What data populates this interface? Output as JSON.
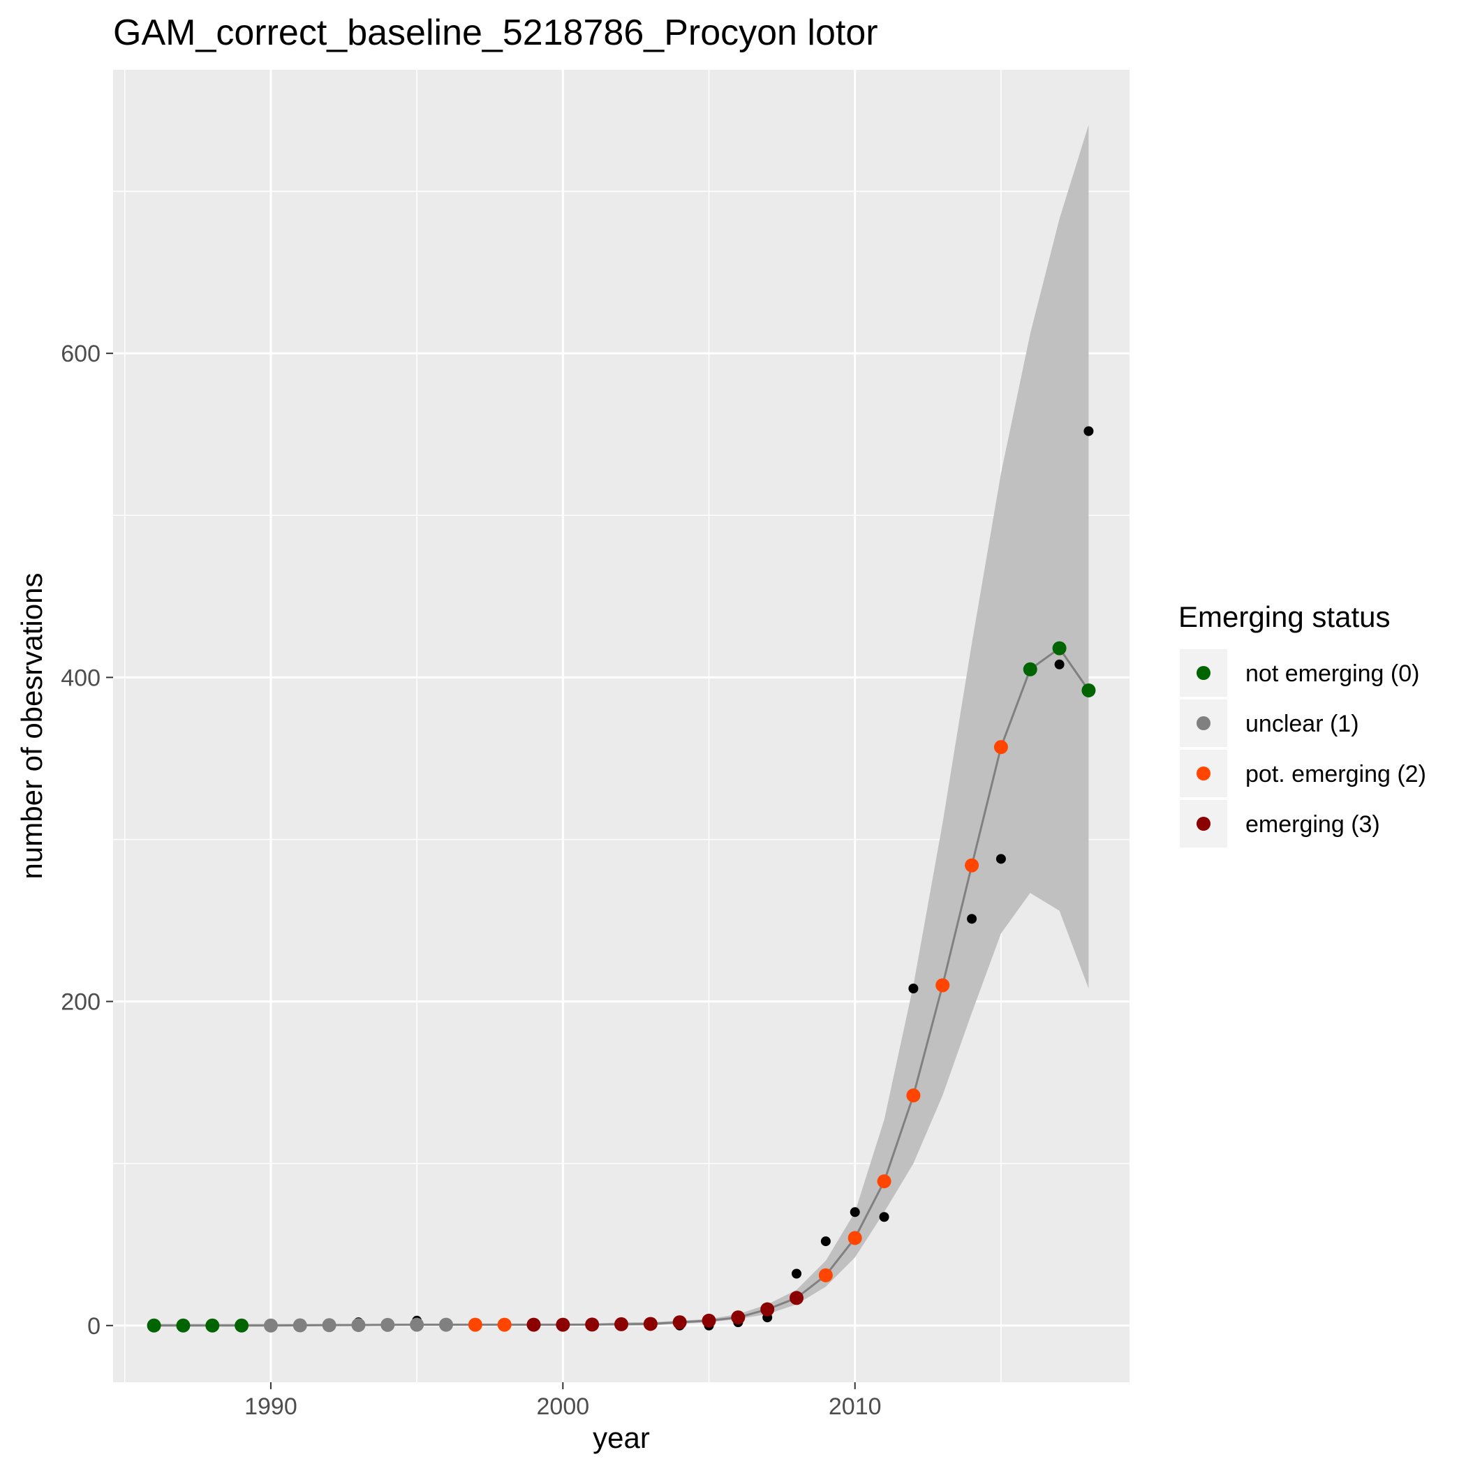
{
  "chart_data": {
    "type": "scatter",
    "title": "GAM_correct_baseline_5218786_Procyon lotor",
    "xlabel": "year",
    "ylabel": "number of obesrvations",
    "xlim": [
      1984.6,
      2019.4
    ],
    "ylim": [
      -35,
      775
    ],
    "x_ticks": [
      1990,
      2000,
      2010
    ],
    "y_ticks": [
      0,
      200,
      400,
      600
    ],
    "grid": true,
    "legend": {
      "title": "Emerging status",
      "placement": "right",
      "items": [
        {
          "label": "not emerging (0)",
          "color": "#006400"
        },
        {
          "label": "unclear (1)",
          "color": "#808080"
        },
        {
          "label": "pot. emerging (2)",
          "color": "#ff4500"
        },
        {
          "label": "emerging (3)",
          "color": "#8b0000"
        }
      ]
    },
    "observed": {
      "x": [
        1986,
        1987,
        1988,
        1989,
        1990,
        1991,
        1992,
        1993,
        1994,
        1995,
        1996,
        1997,
        1998,
        1999,
        2000,
        2001,
        2002,
        2003,
        2004,
        2005,
        2006,
        2007,
        2008,
        2009,
        2010,
        2011,
        2012,
        2013,
        2014,
        2015,
        2016,
        2017,
        2018
      ],
      "y": [
        0,
        0,
        0,
        0,
        0,
        0,
        0,
        2,
        0,
        3,
        0,
        0,
        0,
        0,
        0,
        0,
        0,
        0,
        0,
        0,
        2,
        5,
        32,
        52,
        70,
        67,
        208,
        210,
        251,
        288,
        405,
        408,
        552
      ],
      "color": "#000000"
    },
    "fit": {
      "x": [
        1986,
        1987,
        1988,
        1989,
        1990,
        1991,
        1992,
        1993,
        1994,
        1995,
        1996,
        1997,
        1998,
        1999,
        2000,
        2001,
        2002,
        2003,
        2004,
        2005,
        2006,
        2007,
        2008,
        2009,
        2010,
        2011,
        2012,
        2013,
        2014,
        2015,
        2016,
        2017,
        2018
      ],
      "y": [
        0,
        0,
        0,
        0,
        0,
        0.1,
        0.2,
        0.3,
        0.4,
        0.5,
        0.5,
        0.5,
        0.5,
        0.5,
        0.5,
        0.6,
        0.8,
        1,
        2,
        3,
        5,
        10,
        17,
        31,
        54,
        89,
        142,
        210,
        284,
        357,
        405,
        418,
        392
      ],
      "lower": [
        0,
        0,
        0,
        0,
        0,
        0,
        0,
        0,
        0,
        0,
        0,
        0,
        0,
        0,
        0,
        0,
        0,
        0,
        1,
        2,
        4,
        7,
        13,
        24,
        42,
        70,
        100,
        142,
        193,
        242,
        267,
        256,
        208
      ],
      "upper": [
        1,
        1,
        1,
        1,
        1,
        1,
        1,
        1,
        1,
        1,
        1,
        1,
        1,
        1,
        1,
        1,
        2,
        2,
        3,
        4,
        7,
        13,
        22,
        40,
        70,
        127,
        210,
        310,
        421,
        526,
        612,
        683,
        741
      ],
      "line_color": "#808080",
      "band_color": "#c0c0c0",
      "status": [
        0,
        0,
        0,
        0,
        1,
        1,
        1,
        1,
        1,
        1,
        1,
        2,
        2,
        3,
        3,
        3,
        3,
        3,
        3,
        3,
        3,
        3,
        3,
        2,
        2,
        2,
        2,
        2,
        2,
        2,
        0,
        0,
        0
      ]
    }
  }
}
